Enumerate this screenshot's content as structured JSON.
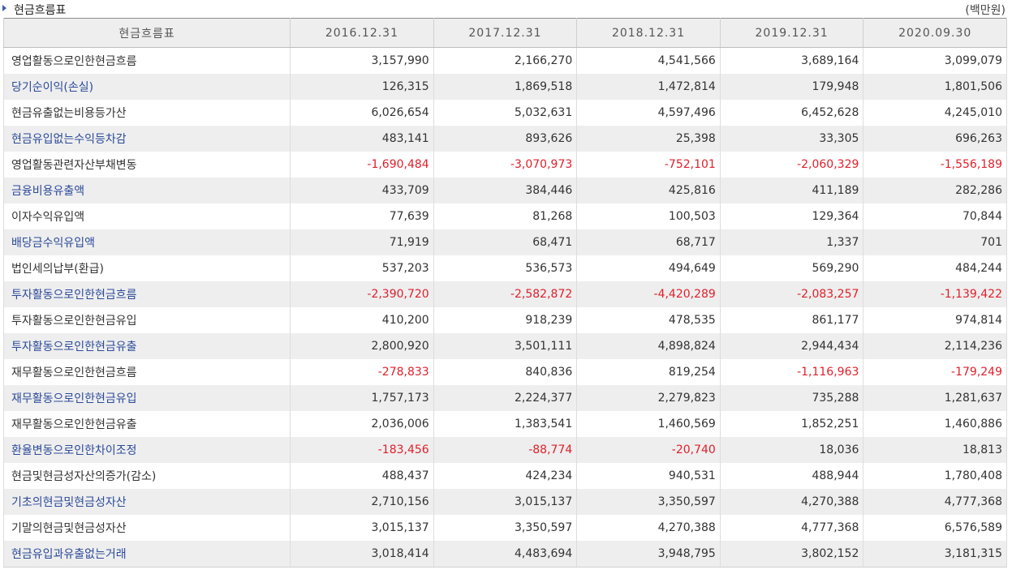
{
  "header": {
    "title": "현금흐름표",
    "unit": "(백만원)"
  },
  "table": {
    "columns": [
      "현금흐름표",
      "2016.12.31",
      "2017.12.31",
      "2018.12.31",
      "2019.12.31",
      "2020.09.30"
    ],
    "rows": [
      {
        "label": "영업활동으로인한현금흐름",
        "values": [
          "3,157,990",
          "2,166,270",
          "4,541,566",
          "3,689,164",
          "3,099,079"
        ]
      },
      {
        "label": "당기순이익(손실)",
        "values": [
          "126,315",
          "1,869,518",
          "1,472,814",
          "179,948",
          "1,801,506"
        ]
      },
      {
        "label": "현금유출없는비용등가산",
        "values": [
          "6,026,654",
          "5,032,631",
          "4,597,496",
          "6,452,628",
          "4,245,010"
        ]
      },
      {
        "label": "현금유입없는수익등차감",
        "values": [
          "483,141",
          "893,626",
          "25,398",
          "33,305",
          "696,263"
        ]
      },
      {
        "label": "영업활동관련자산부채변동",
        "values": [
          "-1,690,484",
          "-3,070,973",
          "-752,101",
          "-2,060,329",
          "-1,556,189"
        ]
      },
      {
        "label": "금융비용유출액",
        "values": [
          "433,709",
          "384,446",
          "425,816",
          "411,189",
          "282,286"
        ]
      },
      {
        "label": "이자수익유입액",
        "values": [
          "77,639",
          "81,268",
          "100,503",
          "129,364",
          "70,844"
        ]
      },
      {
        "label": "배당금수익유입액",
        "values": [
          "71,919",
          "68,471",
          "68,717",
          "1,337",
          "701"
        ]
      },
      {
        "label": "법인세의납부(환급)",
        "values": [
          "537,203",
          "536,573",
          "494,649",
          "569,290",
          "484,244"
        ]
      },
      {
        "label": "투자활동으로인한현금흐름",
        "values": [
          "-2,390,720",
          "-2,582,872",
          "-4,420,289",
          "-2,083,257",
          "-1,139,422"
        ]
      },
      {
        "label": "투자활동으로인한현금유입",
        "values": [
          "410,200",
          "918,239",
          "478,535",
          "861,177",
          "974,814"
        ]
      },
      {
        "label": "투자활동으로인한현금유출",
        "values": [
          "2,800,920",
          "3,501,111",
          "4,898,824",
          "2,944,434",
          "2,114,236"
        ]
      },
      {
        "label": "재무활동으로인한현금흐름",
        "values": [
          "-278,833",
          "840,836",
          "819,254",
          "-1,116,963",
          "-179,249"
        ]
      },
      {
        "label": "재무활동으로인한현금유입",
        "values": [
          "1,757,173",
          "2,224,377",
          "2,279,823",
          "735,288",
          "1,281,637"
        ]
      },
      {
        "label": "재무활동으로인한현금유출",
        "values": [
          "2,036,006",
          "1,383,541",
          "1,460,569",
          "1,852,251",
          "1,460,886"
        ]
      },
      {
        "label": "환율변동으로인한차이조정",
        "values": [
          "-183,456",
          "-88,774",
          "-20,740",
          "18,036",
          "18,813"
        ]
      },
      {
        "label": "현금및현금성자산의증가(감소)",
        "values": [
          "488,437",
          "424,234",
          "940,531",
          "488,944",
          "1,780,408"
        ]
      },
      {
        "label": "기초의현금및현금성자산",
        "values": [
          "2,710,156",
          "3,015,137",
          "3,350,597",
          "4,270,388",
          "4,777,368"
        ]
      },
      {
        "label": "기말의현금및현금성자산",
        "values": [
          "3,015,137",
          "3,350,597",
          "4,270,388",
          "4,777,368",
          "6,576,589"
        ]
      },
      {
        "label": "현금유입과유출없는거래",
        "values": [
          "3,018,414",
          "4,483,694",
          "3,948,795",
          "3,802,152",
          "3,181,315"
        ]
      }
    ]
  },
  "colors": {
    "negative": "#e0202b",
    "link": "#2b4a9a",
    "stripe": "#eeeeee"
  }
}
